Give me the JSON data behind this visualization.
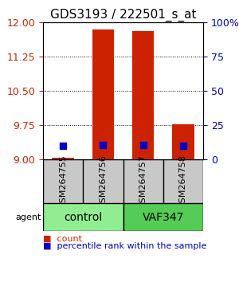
{
  "title": "GDS3193 / 222501_s_at",
  "samples": [
    "GSM264755",
    "GSM264756",
    "GSM264757",
    "GSM264758"
  ],
  "groups": [
    "control",
    "control",
    "VAF347",
    "VAF347"
  ],
  "group_labels": [
    "control",
    "VAF347"
  ],
  "group_colors": [
    "#90EE90",
    "#00CC00"
  ],
  "ylim_left": [
    9,
    12
  ],
  "yticks_left": [
    9,
    9.75,
    10.5,
    11.25,
    12
  ],
  "yticks_right": [
    0,
    25,
    50,
    75,
    100
  ],
  "ylim_right": [
    0,
    100
  ],
  "bar_values": [
    9.04,
    11.84,
    11.81,
    9.77
  ],
  "bar_base": 9.0,
  "bar_color": "#CC2200",
  "bar_width": 0.55,
  "dot_values": [
    10.25,
    10.45,
    10.45,
    10.35
  ],
  "dot_color": "#0000CC",
  "dot_size": 40,
  "left_tick_color": "#CC2200",
  "right_tick_color": "#0000CC",
  "title_fontsize": 11,
  "tick_fontsize": 9,
  "sample_label_fontsize": 8,
  "group_label_fontsize": 10,
  "legend_fontsize": 8,
  "agent_label": "agent",
  "legend_count_label": "count",
  "legend_pct_label": "percentile rank within the sample"
}
